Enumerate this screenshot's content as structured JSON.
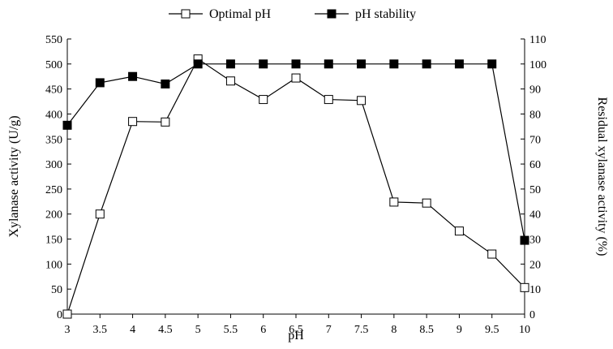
{
  "chart_data": {
    "type": "line",
    "title": "",
    "xlabel": "pH",
    "ylabel_left": "Xylanase activity (U/g)",
    "ylabel_right": "Residual xylanase activity (%)",
    "x": [
      3,
      3.5,
      4,
      4.5,
      5,
      5.5,
      6,
      6.5,
      7,
      7.5,
      8,
      8.5,
      9,
      9.5,
      10
    ],
    "x_tick_labels": [
      "3",
      "3.5",
      "4",
      "4.5",
      "5",
      "5.5",
      "6",
      "6.5",
      "7",
      "7.5",
      "8",
      "8.5",
      "9",
      "9.5",
      "10"
    ],
    "ylim_left": [
      0,
      550
    ],
    "y_ticks_left": [
      "0",
      "50",
      "100",
      "150",
      "200",
      "250",
      "300",
      "350",
      "400",
      "450",
      "500",
      "550"
    ],
    "ylim_right": [
      0,
      110
    ],
    "y_ticks_right": [
      "0",
      "10",
      "20",
      "30",
      "40",
      "50",
      "60",
      "70",
      "80",
      "90",
      "100",
      "110"
    ],
    "grid": false,
    "legend_position": "top-center",
    "series": [
      {
        "name": "Optimal pH",
        "axis": "left",
        "marker": "open-square",
        "color": "#000000",
        "x": [
          3,
          3.5,
          4,
          4.5,
          5,
          5.5,
          6,
          6.5,
          7,
          7.5,
          8,
          8.5,
          9,
          9.5,
          10
        ],
        "values": [
          0,
          200,
          385,
          384,
          510,
          466,
          429,
          472,
          429,
          427,
          224,
          222,
          166,
          120,
          53
        ]
      },
      {
        "name": "pH stability",
        "axis": "right",
        "marker": "filled-square",
        "color": "#000000",
        "x": [
          3,
          3.5,
          4,
          4.5,
          5,
          5.5,
          6,
          6.5,
          7,
          7.5,
          8,
          8.5,
          9,
          9.5,
          10
        ],
        "values": [
          75.5,
          92.5,
          95,
          92,
          100,
          100,
          100,
          100,
          100,
          100,
          100,
          100,
          100,
          100,
          29.5
        ]
      }
    ]
  }
}
